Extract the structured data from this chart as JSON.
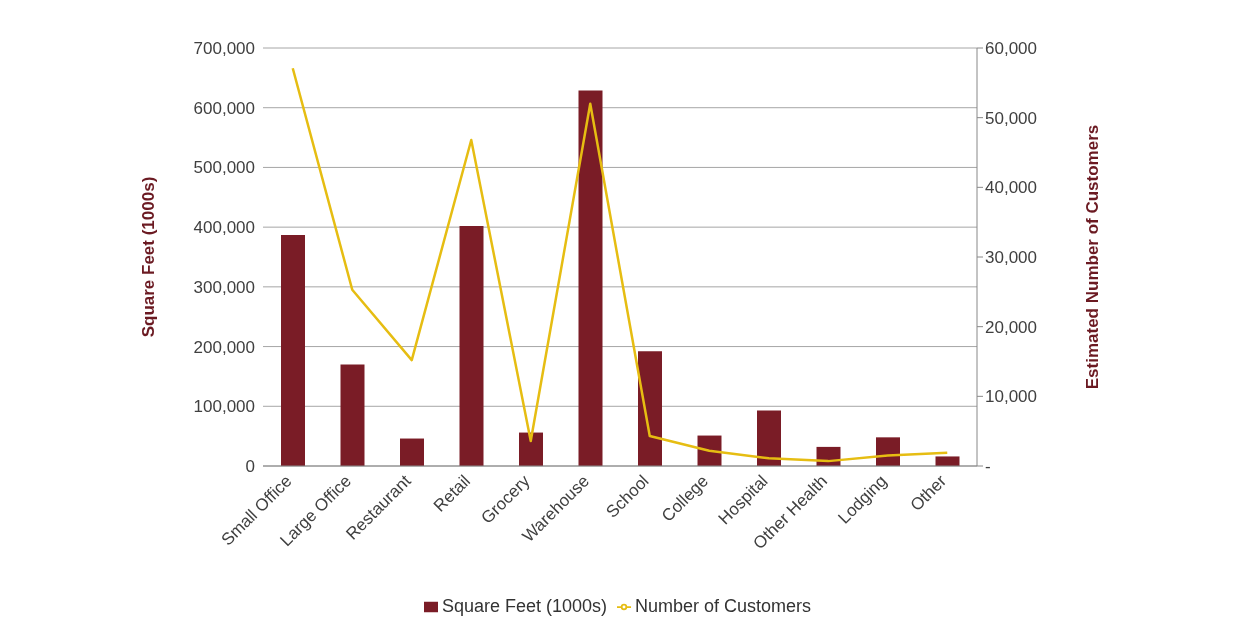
{
  "chart_data": {
    "type": "bar",
    "categories": [
      "Small Office",
      "Large Office",
      "Restaurant",
      "Retail",
      "Grocery",
      "Warehouse",
      "School",
      "College",
      "Hospital",
      "Other Health",
      "Lodging",
      "Other"
    ],
    "series": [
      {
        "name": "Square Feet (1000s)",
        "color": "#7a1c26",
        "values": [
          387000,
          170000,
          46000,
          402000,
          56000,
          629000,
          192000,
          51000,
          93000,
          32000,
          48000,
          16000
        ]
      },
      {
        "name": "Number of Customers",
        "type": "line",
        "axis": "y2",
        "color": "#e6bd12",
        "values": [
          57100,
          25300,
          15200,
          46800,
          3600,
          52000,
          4300,
          2200,
          1100,
          700,
          1500,
          1900
        ]
      }
    ],
    "ylabel": "Square Feet (1000s)",
    "y2label": "Estimated Number of Customers",
    "ylim": [
      0,
      700000
    ],
    "yticks": [
      0,
      {
        "value": 100000,
        "label": "100,000"
      },
      {
        "value": 200000,
        "label": "200,000"
      },
      {
        "value": 300000,
        "label": "300,000"
      },
      {
        "value": 400000,
        "label": "400,000"
      },
      {
        "value": 500000,
        "label": "500,000"
      },
      {
        "value": 600000,
        "label": "600,000"
      },
      {
        "value": 700000,
        "label": "700,000"
      }
    ],
    "y2lim": [
      0,
      60000
    ],
    "y2ticks": [
      {
        "value": 0,
        "label": "-"
      },
      {
        "value": 10000,
        "label": "10,000"
      },
      {
        "value": 20000,
        "label": "20,000"
      },
      {
        "value": 30000,
        "label": "30,000"
      },
      {
        "value": 40000,
        "label": "40,000"
      },
      {
        "value": 50000,
        "label": "50,000"
      },
      {
        "value": 60000,
        "label": "60,000"
      }
    ],
    "grid": "y",
    "legend": "bottom",
    "marker": "none",
    "line_style": "solid"
  }
}
